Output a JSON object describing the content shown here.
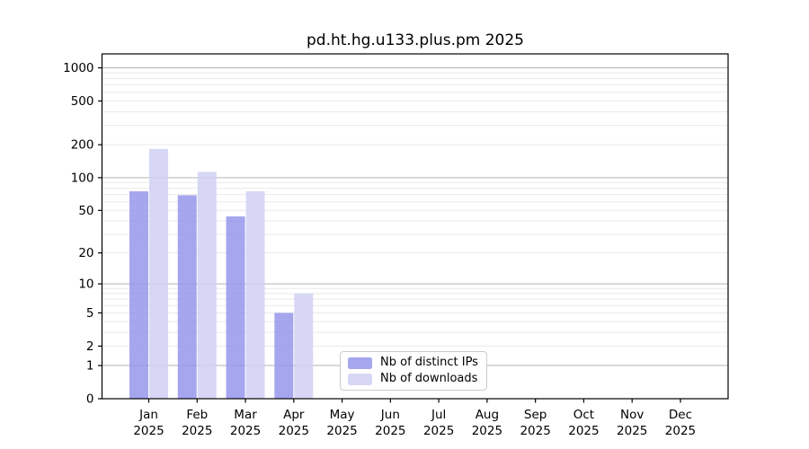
{
  "title": "pd.ht.hg.u133.plus.pm 2025",
  "chart_data": {
    "type": "bar",
    "title": "pd.ht.hg.u133.plus.pm 2025",
    "categories": [
      "Jan",
      "Feb",
      "Mar",
      "Apr",
      "May",
      "Jun",
      "Jul",
      "Aug",
      "Sep",
      "Oct",
      "Nov",
      "Dec"
    ],
    "year_label": "2025",
    "series": [
      {
        "name": "Nb of distinct IPs",
        "color": "#a6a6ef",
        "values": [
          75,
          69,
          44,
          5,
          0,
          0,
          0,
          0,
          0,
          0,
          0,
          0
        ]
      },
      {
        "name": "Nb of downloads",
        "color": "#d7d7f5",
        "values": [
          183,
          113,
          75,
          8,
          0,
          0,
          0,
          0,
          0,
          0,
          0,
          0
        ]
      }
    ],
    "yscale": "log10(1+value)",
    "y_ticks": [
      0,
      1,
      2,
      5,
      10,
      20,
      50,
      100,
      200,
      500,
      1000
    ],
    "y_top_value": 1300,
    "grid": {
      "major_at": [
        1,
        10,
        100,
        1000
      ],
      "minor_multipliers": [
        2,
        3,
        4,
        5,
        6,
        7,
        8,
        9
      ],
      "minor_decades": [
        1,
        10,
        100
      ]
    },
    "legend_position": "inside-bottom-center",
    "colors": {
      "axis": "#000000",
      "grid_major": "#b3b3b3",
      "grid_minor": "#e9e9e9",
      "text": "#000000",
      "legend_border": "#cccccc"
    }
  }
}
